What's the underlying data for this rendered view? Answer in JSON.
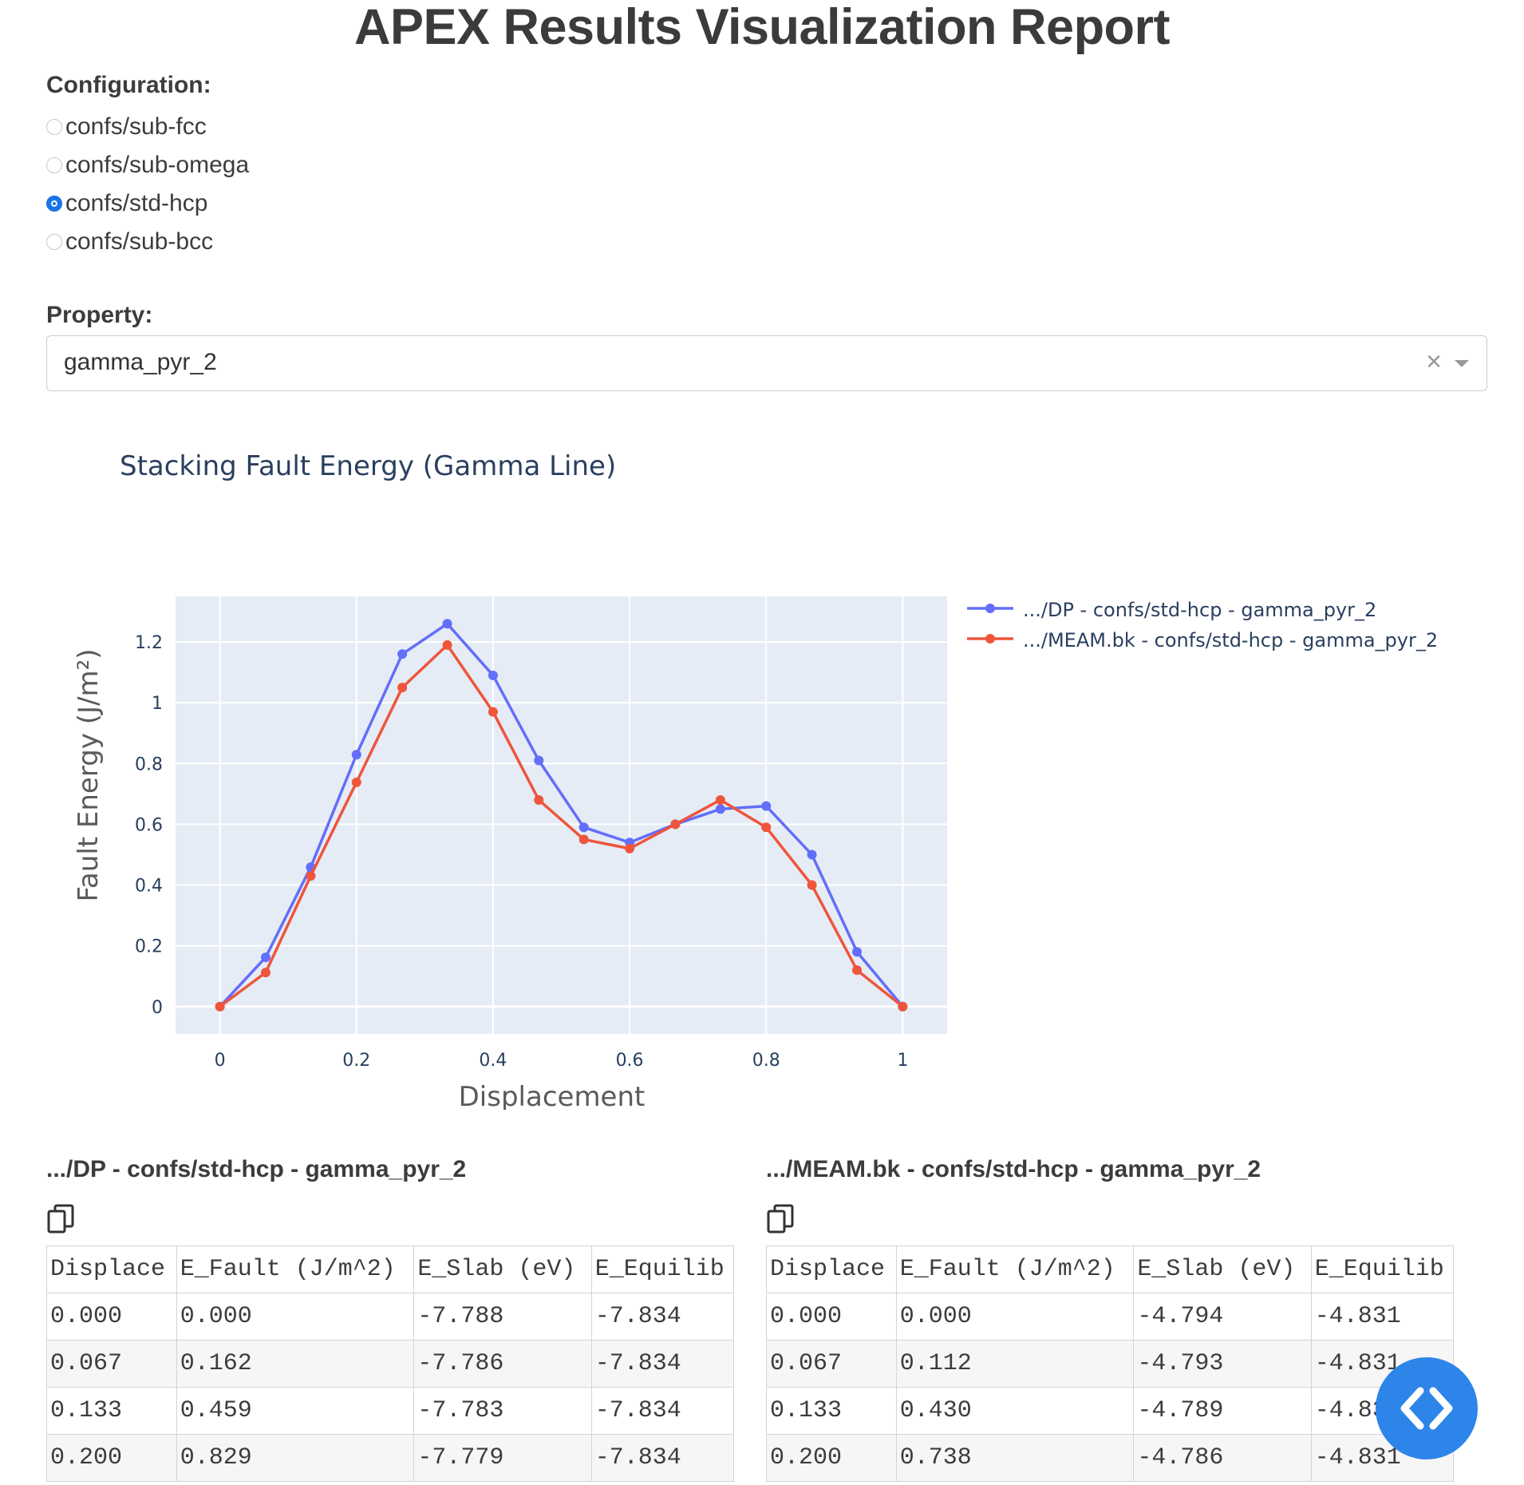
{
  "page": {
    "title": "APEX Results Visualization Report"
  },
  "configuration": {
    "label": "Configuration:",
    "options": [
      "confs/sub-fcc",
      "confs/sub-omega",
      "confs/std-hcp",
      "confs/sub-bcc"
    ],
    "selected": "confs/std-hcp"
  },
  "property": {
    "label": "Property:",
    "value": "gamma_pyr_2",
    "clear_glyph": "×"
  },
  "chart_data": {
    "type": "line",
    "title": "Stacking Fault Energy (Gamma Line)",
    "xlabel": "Displacement",
    "ylabel": "Fault Energy (J/m²)",
    "xlim": [
      -0.065,
      1.065
    ],
    "ylim": [
      -0.09,
      1.35
    ],
    "xticks": [
      0,
      0.2,
      0.4,
      0.6,
      0.8,
      1
    ],
    "xtick_labels": [
      "0",
      "0.2",
      "0.4",
      "0.6",
      "0.8",
      "1"
    ],
    "yticks": [
      0,
      0.2,
      0.4,
      0.6,
      0.8,
      1,
      1.2
    ],
    "ytick_labels": [
      "0",
      "0.2",
      "0.4",
      "0.6",
      "0.8",
      "1",
      "1.2"
    ],
    "grid": true,
    "legend_position": "right",
    "x": [
      0,
      0.067,
      0.133,
      0.2,
      0.267,
      0.333,
      0.4,
      0.467,
      0.533,
      0.6,
      0.667,
      0.733,
      0.8,
      0.867,
      0.933,
      1.0
    ],
    "series": [
      {
        "name": ".../DP - confs/std-hcp - gamma_pyr_2",
        "color": "#636efa",
        "values": [
          0,
          0.162,
          0.459,
          0.829,
          1.16,
          1.26,
          1.09,
          0.81,
          0.59,
          0.54,
          0.6,
          0.65,
          0.66,
          0.5,
          0.18,
          0
        ]
      },
      {
        "name": ".../MEAM.bk - confs/std-hcp - gamma_pyr_2",
        "color": "#ef553b",
        "values": [
          0,
          0.112,
          0.43,
          0.738,
          1.05,
          1.19,
          0.97,
          0.68,
          0.55,
          0.52,
          0.6,
          0.68,
          0.59,
          0.4,
          0.12,
          0
        ]
      }
    ]
  },
  "tables": [
    {
      "title": ".../DP - confs/std-hcp - gamma_pyr_2",
      "columns": [
        "Displace",
        "E_Fault (J/m^2)",
        "E_Slab (eV)",
        "E_Equilib"
      ],
      "rows": [
        [
          "0.000",
          "0.000",
          "-7.788",
          "-7.834"
        ],
        [
          "0.067",
          "0.162",
          "-7.786",
          "-7.834"
        ],
        [
          "0.133",
          "0.459",
          "-7.783",
          "-7.834"
        ],
        [
          "0.200",
          "0.829",
          "-7.779",
          "-7.834"
        ]
      ]
    },
    {
      "title": ".../MEAM.bk - confs/std-hcp - gamma_pyr_2",
      "columns": [
        "Displace",
        "E_Fault (J/m^2)",
        "E_Slab (eV)",
        "E_Equilib"
      ],
      "rows": [
        [
          "0.000",
          "0.000",
          "-4.794",
          "-4.831"
        ],
        [
          "0.067",
          "0.112",
          "-4.793",
          "-4.831"
        ],
        [
          "0.133",
          "0.430",
          "-4.789",
          "-4.831"
        ],
        [
          "0.200",
          "0.738",
          "-4.786",
          "-4.831"
        ]
      ]
    }
  ],
  "icons": {
    "copy": "copy-icon",
    "code": "code-icon",
    "clear": "clear-icon",
    "dropdown": "chevron-down-icon"
  },
  "colors": {
    "accent": "#1a73e8",
    "fab": "#2d85ea",
    "plot_bg": "#e5ecf6"
  }
}
